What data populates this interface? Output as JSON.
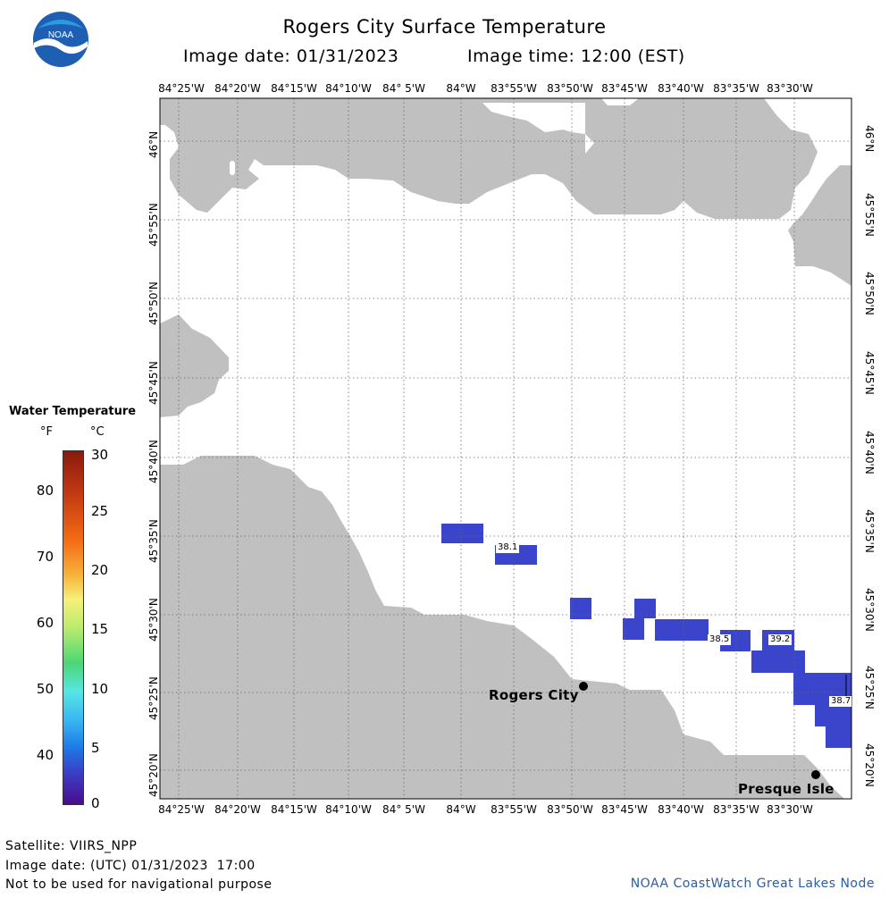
{
  "title": "Rogers City Surface Temperature",
  "image_date": "Image date: 01/31/2023",
  "image_time": "Image time: 12:00 (EST)",
  "logo_text": "NOAA",
  "longitude_labels": [
    "84°25'W",
    "84°20'W",
    "84°15'W",
    "84°10'W",
    "84° 5'W",
    "84°W",
    "83°55'W",
    "83°50'W",
    "83°45'W",
    "83°40'W",
    "83°35'W",
    "83°30'W"
  ],
  "latitude_labels": [
    "46°N",
    "45°55'N",
    "45°50'N",
    "45°45'N",
    "45°40'N",
    "45°35'N",
    "45°30'N",
    "45°25'N",
    "45°20'N"
  ],
  "legend": {
    "title": "Water Temperature",
    "unit_f": "°F",
    "unit_c": "°C",
    "ticks_f": [
      "80",
      "70",
      "60",
      "50",
      "40"
    ],
    "ticks_c": [
      "30",
      "25",
      "20",
      "15",
      "10",
      "5",
      "0"
    ]
  },
  "places": {
    "rogers_city": "Rogers City",
    "presque_isle": "Presque Isle"
  },
  "temperature_labels": [
    "38.1",
    "38.5",
    "39.2",
    "38.7"
  ],
  "footer": {
    "satellite": "Satellite: VIIRS_NPP",
    "utc_date": "Image date: (UTC) 01/31/2023  17:00",
    "disclaimer": "Not to be used for navigational purpose",
    "source": "NOAA CoastWatch Great Lakes Node"
  },
  "colors": {
    "land": "#c0c0c0",
    "water": "#ffffff",
    "temperature_cells": "#3a45cc",
    "source_text": "#2a5caa"
  }
}
